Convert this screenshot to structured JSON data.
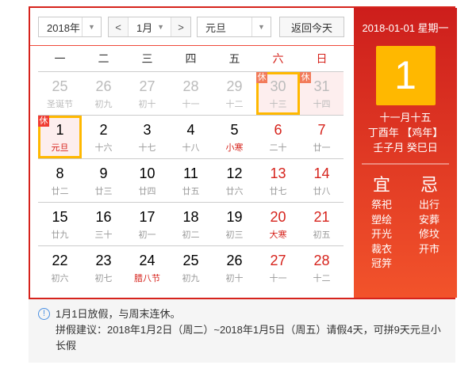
{
  "controls": {
    "year": "2018年",
    "month": "1月",
    "prev": "<",
    "next": ">",
    "holiday": "元旦",
    "today_button": "返回今天"
  },
  "weekdays": [
    "一",
    "二",
    "三",
    "四",
    "五",
    "六",
    "日"
  ],
  "rest_badge": "休",
  "weeks": [
    [
      {
        "d": "25",
        "l": "圣诞节",
        "other": true
      },
      {
        "d": "26",
        "l": "初九",
        "other": true
      },
      {
        "d": "27",
        "l": "初十",
        "other": true
      },
      {
        "d": "28",
        "l": "十一",
        "other": true
      },
      {
        "d": "29",
        "l": "十二",
        "other": true
      },
      {
        "d": "30",
        "l": "十三",
        "other": true,
        "rest": true,
        "today": true
      },
      {
        "d": "31",
        "l": "十四",
        "other": true,
        "rest": true
      }
    ],
    [
      {
        "d": "1",
        "l": "元旦",
        "fest": true,
        "rest": true,
        "selected": true
      },
      {
        "d": "2",
        "l": "十六"
      },
      {
        "d": "3",
        "l": "十七"
      },
      {
        "d": "4",
        "l": "十八"
      },
      {
        "d": "5",
        "l": "小寒",
        "fest": true
      },
      {
        "d": "6",
        "l": "二十",
        "we": true
      },
      {
        "d": "7",
        "l": "廿一",
        "we": true
      }
    ],
    [
      {
        "d": "8",
        "l": "廿二"
      },
      {
        "d": "9",
        "l": "廿三"
      },
      {
        "d": "10",
        "l": "廿四"
      },
      {
        "d": "11",
        "l": "廿五"
      },
      {
        "d": "12",
        "l": "廿六"
      },
      {
        "d": "13",
        "l": "廿七",
        "we": true
      },
      {
        "d": "14",
        "l": "廿八",
        "we": true
      }
    ],
    [
      {
        "d": "15",
        "l": "廿九"
      },
      {
        "d": "16",
        "l": "三十"
      },
      {
        "d": "17",
        "l": "初一"
      },
      {
        "d": "18",
        "l": "初二"
      },
      {
        "d": "19",
        "l": "初三"
      },
      {
        "d": "20",
        "l": "大寒",
        "we": true,
        "fest": true
      },
      {
        "d": "21",
        "l": "初五",
        "we": true
      }
    ],
    [
      {
        "d": "22",
        "l": "初六"
      },
      {
        "d": "23",
        "l": "初七"
      },
      {
        "d": "24",
        "l": "腊八节",
        "fest": true
      },
      {
        "d": "25",
        "l": "初九"
      },
      {
        "d": "26",
        "l": "初十"
      },
      {
        "d": "27",
        "l": "十一",
        "we": true
      },
      {
        "d": "28",
        "l": "十二",
        "we": true
      }
    ]
  ],
  "detail": {
    "date": "2018-01-01 星期一",
    "day": "1",
    "lunar": "十一月十五",
    "year_gz": "丁酉年 【鸡年】",
    "month_day_gz": "壬子月 癸巳日",
    "yi_title": "宜",
    "yi": [
      "祭祀",
      "塑绘",
      "开光",
      "裁衣",
      "冠笄"
    ],
    "ji_title": "忌",
    "ji": [
      "出行",
      "安葬",
      "修坟",
      "开市"
    ]
  },
  "info": {
    "icon": "info-icon",
    "line1": "1月1日放假，与周末连休。",
    "line2": "拼假建议：2018年1月2日（周二）~2018年1月5日（周五）请假4天，可拼9天元旦小长假"
  },
  "colors": {
    "accent": "#d6231c",
    "selected": "#ffb800"
  }
}
